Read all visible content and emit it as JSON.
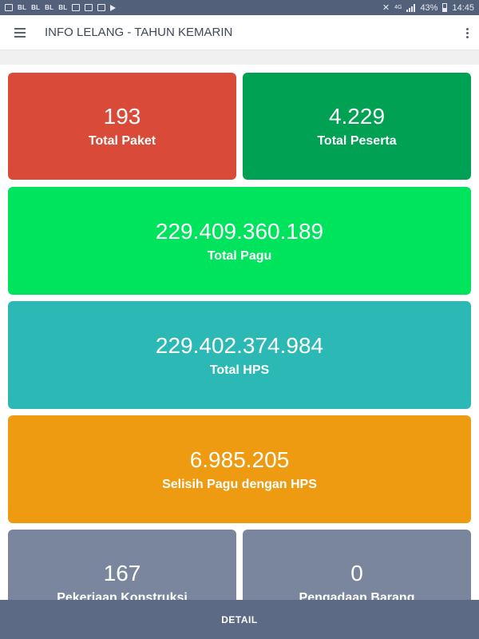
{
  "status_bar": {
    "notification_icons": [
      "BL",
      "BL",
      "BL",
      "BL"
    ],
    "network": "4G",
    "battery": "43%",
    "time": "14:45"
  },
  "app_bar": {
    "title": "INFO LELANG - TAHUN KEMARIN"
  },
  "cards": [
    {
      "value": "193",
      "label": "Total Paket",
      "color": "#d94a38"
    },
    {
      "value": "4.229",
      "label": "Total Peserta",
      "color": "#00a152"
    },
    {
      "value": "229.409.360.189",
      "label": "Total Pagu",
      "color": "#00e35c"
    },
    {
      "value": "229.402.374.984",
      "label": "Total HPS",
      "color": "#2cb9b6"
    },
    {
      "value": "6.985.205",
      "label": "Selisih Pagu dengan HPS",
      "color": "#ef9b12"
    },
    {
      "value": "167",
      "label": "Pekerjaan Konstruksi",
      "color": "#7a869d"
    },
    {
      "value": "0",
      "label": "Pengadaan Barang",
      "color": "#7a869d"
    }
  ],
  "bottom_bar": {
    "label": "DETAIL"
  }
}
